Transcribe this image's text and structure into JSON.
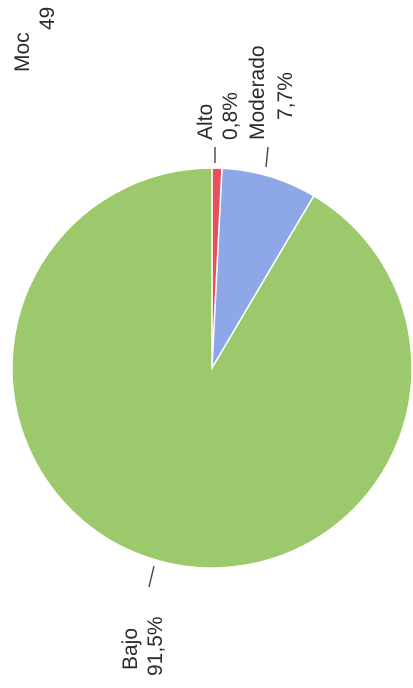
{
  "chart_data": {
    "type": "pie",
    "rotated": "counterclockwise-90",
    "slices": [
      {
        "label": "Alto",
        "value_label": "0,8%",
        "value": 0.8,
        "color": "#e8505b"
      },
      {
        "label": "Moderado",
        "value_label": "7,7%",
        "value": 7.7,
        "color": "#8ea7e6"
      },
      {
        "label": "Bajo",
        "value_label": "91,5%",
        "value": 91.5,
        "color": "#9cc96b"
      }
    ],
    "clipped_text": {
      "line1": "Moc",
      "line2": "49"
    }
  }
}
